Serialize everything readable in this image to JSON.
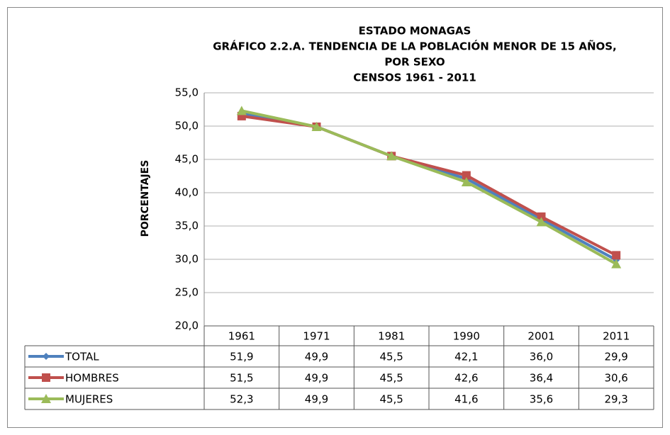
{
  "chart_data": {
    "type": "line",
    "title": [
      "ESTADO MONAGAS",
      "GRÁFICO 2.2.A. TENDENCIA DE LA POBLACIÓN MENOR DE 15 AÑOS,",
      "POR SEXO",
      "CENSOS 1961 - 2011"
    ],
    "ylabel": "PORCENTAJES",
    "categories": [
      "1961",
      "1971",
      "1981",
      "1990",
      "2001",
      "2011"
    ],
    "series": [
      {
        "name": "TOTAL",
        "color": "#4f81bd",
        "marker": "diamond",
        "values": [
          51.9,
          49.9,
          45.5,
          42.1,
          36.0,
          29.9
        ],
        "value_labels": [
          "51,9",
          "49,9",
          "45,5",
          "42,1",
          "36,0",
          "29,9"
        ]
      },
      {
        "name": "HOMBRES",
        "color": "#c0504d",
        "marker": "square",
        "values": [
          51.5,
          49.9,
          45.5,
          42.6,
          36.4,
          30.6
        ],
        "value_labels": [
          "51,5",
          "49,9",
          "45,5",
          "42,6",
          "36,4",
          "30,6"
        ]
      },
      {
        "name": "MUJERES",
        "color": "#9bbb59",
        "marker": "triangle",
        "values": [
          52.3,
          49.9,
          45.5,
          41.6,
          35.6,
          29.3
        ],
        "value_labels": [
          "52,3",
          "49,9",
          "45,5",
          "41,6",
          "35,6",
          "29,3"
        ]
      }
    ],
    "ylim": [
      20,
      55
    ],
    "yticks": [
      {
        "value": 20,
        "label": "20,0"
      },
      {
        "value": 25,
        "label": "25,0"
      },
      {
        "value": 30,
        "label": "30,0"
      },
      {
        "value": 35,
        "label": "35,0"
      },
      {
        "value": 40,
        "label": "40,0"
      },
      {
        "value": 45,
        "label": "45,0"
      },
      {
        "value": 50,
        "label": "50,0"
      },
      {
        "value": 55,
        "label": "55,0"
      }
    ],
    "grid": true
  }
}
